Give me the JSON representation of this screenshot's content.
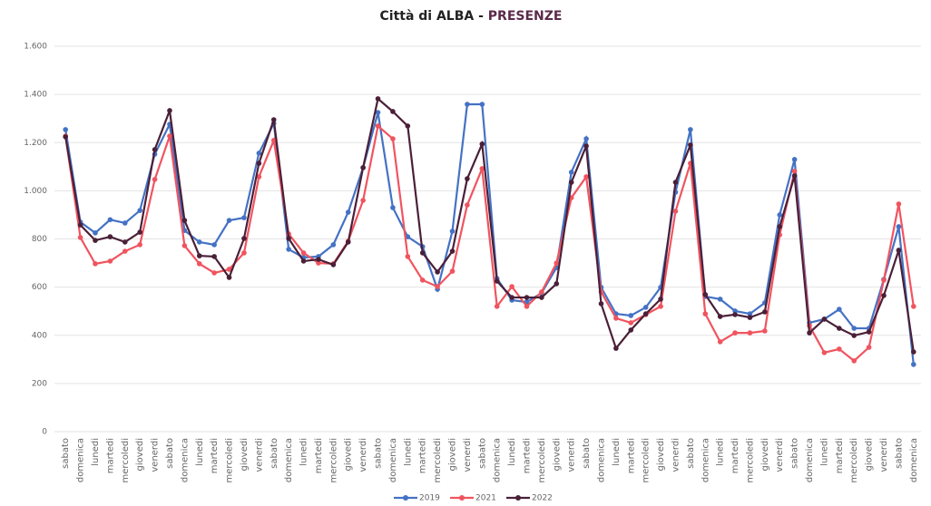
{
  "chart_data": {
    "type": "line",
    "title": "Città di ALBA -",
    "title_highlight": "PRESENZE",
    "categories": [
      "sabato",
      "domenica",
      "lunedi",
      "martedi",
      "mercoledi",
      "giovedi",
      "venerdi",
      "sabato",
      "domenica",
      "lunedi",
      "martedi",
      "mercoledi",
      "giovedi",
      "venerdi",
      "sabato",
      "domenica",
      "lunedi",
      "martedi",
      "mercoledi",
      "giovedi",
      "venerdi",
      "sabato",
      "domenica",
      "lunedi",
      "martedi",
      "mercoledi",
      "giovedi",
      "venerdi",
      "sabato",
      "domenica",
      "lunedi",
      "martedi",
      "mercoledi",
      "giovedi",
      "venerdi",
      "sabato",
      "domenica",
      "lunedi",
      "martedi",
      "mercoledi",
      "giovedi",
      "venerdi",
      "sabato",
      "domenica",
      "lunedi",
      "martedi",
      "mercoledi",
      "giovedi",
      "venerdi",
      "sabato",
      "domenica",
      "lunedi",
      "martedi",
      "mercoledi",
      "giovedi",
      "venerdi",
      "sabato",
      "domenica"
    ],
    "series": [
      {
        "name": "2019",
        "color": "#4472c4",
        "values": [
          1254,
          870,
          825,
          880,
          866,
          918,
          1152,
          1276,
          835,
          787,
          776,
          877,
          888,
          1156,
          1280,
          757,
          723,
          727,
          776,
          911,
          1096,
          1325,
          930,
          809,
          768,
          591,
          832,
          1359,
          1359,
          636,
          546,
          538,
          576,
          681,
          1077,
          1216,
          599,
          489,
          482,
          516,
          599,
          994,
          1254,
          561,
          550,
          501,
          489,
          535,
          900,
          1130,
          452,
          467,
          508,
          429,
          429,
          632,
          851,
          279
        ]
      },
      {
        "name": "2021",
        "color": "#f0545f",
        "values": [
          1227,
          806,
          697,
          708,
          749,
          776,
          1047,
          1227,
          772,
          697,
          659,
          674,
          742,
          1058,
          1209,
          821,
          742,
          700,
          697,
          791,
          960,
          1269,
          1216,
          727,
          629,
          602,
          666,
          941,
          1092,
          520,
          602,
          520,
          580,
          700,
          971,
          1058,
          580,
          471,
          452,
          486,
          520,
          915,
          1114,
          489,
          373,
          410,
          410,
          418,
          817,
          1081,
          440,
          328,
          343,
          294,
          350,
          629,
          945,
          520
        ]
      },
      {
        "name": "2022",
        "color": "#4a2038",
        "values": [
          1224,
          858,
          794,
          809,
          787,
          828,
          1171,
          1333,
          877,
          730,
          727,
          640,
          802,
          1114,
          1295,
          802,
          708,
          715,
          693,
          787,
          1096,
          1382,
          1329,
          1269,
          742,
          663,
          749,
          1050,
          1194,
          625,
          557,
          557,
          557,
          614,
          1035,
          1186,
          531,
          346,
          422,
          489,
          550,
          1035,
          1190,
          569,
          478,
          486,
          474,
          497,
          851,
          1062,
          410,
          467,
          429,
          399,
          414,
          565,
          753,
          331
        ]
      }
    ],
    "ylim": [
      0,
      1600
    ],
    "yticks": [
      0,
      200,
      400,
      600,
      800,
      {
        "value": 1000,
        "label": "1.000"
      },
      {
        "value": 1200,
        "label": "1.200"
      },
      {
        "value": 1400,
        "label": "1.400"
      },
      {
        "value": 1600,
        "label": "1.600"
      }
    ],
    "grid": true,
    "legend": "bottom"
  }
}
